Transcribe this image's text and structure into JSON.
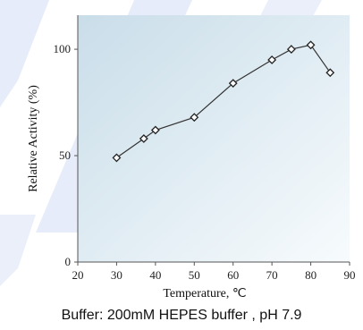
{
  "chart_data": {
    "type": "line",
    "title": "",
    "xlabel": "Temperature, ℃",
    "ylabel": "Relative Activity (%)",
    "x": [
      30,
      37,
      40,
      50,
      60,
      70,
      75,
      80,
      85
    ],
    "y": [
      49,
      58,
      62,
      68,
      84,
      95,
      100,
      102,
      89
    ],
    "xlim": [
      20,
      90
    ],
    "ylim": [
      0,
      116
    ],
    "xticks": [
      "20",
      "30",
      "40",
      "50",
      "60",
      "70",
      "80",
      "90"
    ],
    "yticks": [
      "0",
      "50",
      "100"
    ],
    "marker": "diamond-open",
    "grid": false,
    "colors": {
      "line": "#333333",
      "plot_bg_top": "#c9dde9",
      "plot_bg_bottom": "#f7fbfd",
      "page_watermark": "#1e50c8"
    }
  },
  "caption": "Buffer: 200mM HEPES buffer , pH 7.9"
}
